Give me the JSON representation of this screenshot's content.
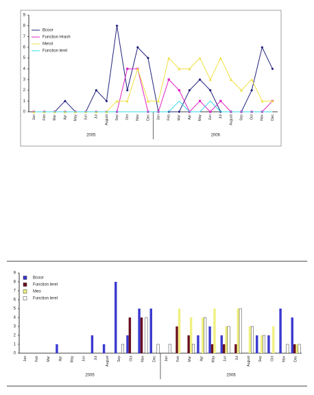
{
  "chart_data": [
    {
      "type": "line",
      "ylim": [
        0,
        9
      ],
      "yticks": [
        0,
        1,
        2,
        3,
        4,
        5,
        6,
        7,
        8,
        9
      ],
      "grid": false,
      "legend": "top-left",
      "categories": [
        "Jan",
        "Feb",
        "Mar",
        "Apr",
        "May",
        "Jun",
        "Jul",
        "August",
        "Sep",
        "Oct",
        "Nov",
        "Dec",
        "Jan",
        "Feb",
        "Mar",
        "Apr",
        "May",
        "Jun",
        "Jul",
        "August",
        "Sep",
        "Oct",
        "Nov",
        "Dec"
      ],
      "x_groups": [
        "2005",
        "2006"
      ],
      "series": [
        {
          "name": "Bcoor",
          "color": "#1f1f7a",
          "marker": "diamond",
          "values": [
            0,
            0,
            0,
            1,
            0,
            0,
            2,
            1,
            8,
            2,
            6,
            5,
            0,
            0,
            0,
            2,
            3,
            2,
            0,
            0,
            0,
            2,
            6,
            4
          ]
        },
        {
          "name": "Function Hrash",
          "color": "#e020c0",
          "marker": "square",
          "values": [
            0,
            0,
            0,
            0,
            0,
            0,
            0,
            0,
            0,
            4,
            4,
            0,
            0,
            3,
            2,
            0,
            1,
            0,
            1,
            0,
            0,
            0,
            0,
            1
          ]
        },
        {
          "name": "Merol",
          "color": "#f0e040",
          "marker": "triangle",
          "values": [
            0,
            0,
            0,
            0,
            0,
            0,
            0,
            0,
            1,
            1,
            4,
            1,
            1,
            5,
            4,
            4,
            5,
            3,
            5,
            3,
            2,
            3,
            1,
            1
          ]
        },
        {
          "name": "Function lerel",
          "color": "#30d8e8",
          "marker": "none",
          "values": [
            0,
            0,
            0,
            0,
            0,
            0,
            0,
            0,
            0,
            0,
            0,
            0,
            0,
            0,
            1,
            0,
            0,
            1,
            0,
            0,
            0,
            0,
            0,
            0
          ]
        }
      ]
    },
    {
      "type": "bar",
      "ylim": [
        0,
        9
      ],
      "yticks": [
        0,
        1,
        2,
        3,
        4,
        5,
        6,
        7,
        8,
        9
      ],
      "grid": false,
      "legend": "top-left",
      "categories": [
        "Jan",
        "Feb",
        "Mar",
        "Apr",
        "May",
        "Jun",
        "Jul",
        "August",
        "Sep",
        "Oct",
        "Nov",
        "Dec",
        "Jan",
        "Feb",
        "Mar",
        "Apr",
        "May",
        "Jun",
        "Jul",
        "August",
        "Sep",
        "Oct",
        "Nov",
        "Dec"
      ],
      "x_groups": [
        "2005",
        "2006"
      ],
      "series": [
        {
          "name": "Bcoor",
          "color": "#3a3ad0",
          "values": [
            0,
            0,
            0,
            1,
            0,
            0,
            2,
            1,
            8,
            2,
            5,
            5,
            0,
            0,
            0,
            2,
            3,
            2,
            0,
            0,
            2,
            2,
            5,
            4
          ]
        },
        {
          "name": "Function lerel",
          "color": "#6a1020",
          "values": [
            0,
            0,
            0,
            0,
            0,
            0,
            0,
            0,
            0,
            4,
            4,
            0,
            0,
            3,
            2,
            0,
            1,
            1,
            1,
            0,
            0,
            0,
            0,
            1
          ]
        },
        {
          "name": "Meo",
          "color": "#f0f080",
          "values": [
            0,
            0,
            0,
            0,
            0,
            0,
            0,
            0,
            0,
            0,
            0,
            0,
            0,
            5,
            4,
            4,
            5,
            3,
            5,
            3,
            2,
            3,
            0,
            1
          ]
        },
        {
          "name": "Function lerel",
          "color": "#ffffff",
          "values": [
            0,
            0,
            0,
            0,
            0,
            0,
            0,
            0,
            1,
            0,
            4,
            1,
            1,
            0,
            1,
            4,
            0,
            3,
            5,
            3,
            2,
            0,
            1,
            1
          ]
        }
      ]
    }
  ]
}
